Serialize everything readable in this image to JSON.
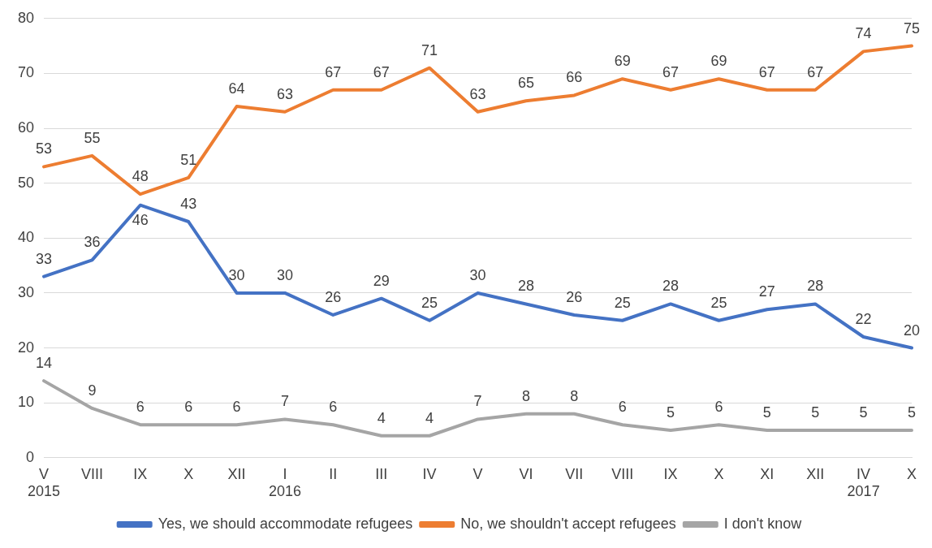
{
  "chart_data": {
    "type": "line",
    "categories": [
      "V\n2015",
      "VIII",
      "IX",
      "X",
      "XII",
      "I\n2016",
      "II",
      "III",
      "IV",
      "V",
      "VI",
      "VII",
      "VIII",
      "IX",
      "X",
      "XI",
      "XII",
      "IV\n2017",
      "X"
    ],
    "series": [
      {
        "name": "Yes, we should accommodate refugees",
        "color": "#4472c4",
        "values": [
          33,
          36,
          46,
          43,
          30,
          30,
          26,
          29,
          25,
          30,
          28,
          26,
          25,
          28,
          25,
          27,
          28,
          22,
          20
        ]
      },
      {
        "name": "No, we shouldn't accept refugees",
        "color": "#ed7d31",
        "values": [
          53,
          55,
          48,
          51,
          64,
          63,
          67,
          67,
          71,
          63,
          65,
          66,
          69,
          67,
          69,
          67,
          67,
          74,
          75
        ]
      },
      {
        "name": "I don't know",
        "color": "#a5a5a5",
        "values": [
          14,
          9,
          6,
          6,
          6,
          7,
          6,
          4,
          4,
          7,
          8,
          8,
          6,
          5,
          6,
          5,
          5,
          5,
          5
        ]
      }
    ],
    "ylim": [
      0,
      80
    ],
    "yticks": [
      0,
      10,
      20,
      30,
      40,
      50,
      60,
      70,
      80
    ],
    "grid": "y",
    "legend": "bottom",
    "data_labels": true,
    "marker": "none",
    "line_style": "solid"
  }
}
